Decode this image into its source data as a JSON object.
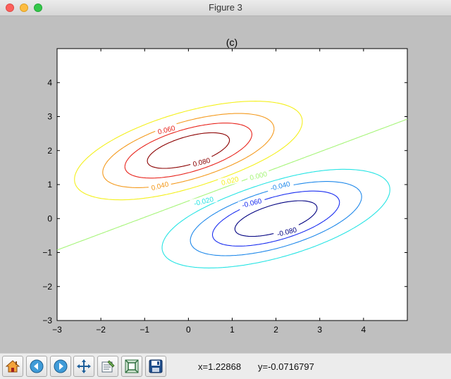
{
  "window": {
    "title": "Figure 3"
  },
  "toolbar": {
    "buttons": [
      {
        "name": "home-button",
        "icon": "home-icon"
      },
      {
        "name": "back-button",
        "icon": "back-arrow-icon"
      },
      {
        "name": "forward-button",
        "icon": "forward-arrow-icon"
      },
      {
        "name": "pan-button",
        "icon": "move-icon"
      },
      {
        "name": "configure-subplots-button",
        "icon": "subplots-icon"
      },
      {
        "name": "zoom-button",
        "icon": "zoom-rect-icon"
      },
      {
        "name": "save-button",
        "icon": "save-icon"
      }
    ],
    "x_readout": "x=1.22868",
    "y_readout": "y=-0.0716797"
  },
  "chart_data": {
    "type": "contour",
    "title": "(c)",
    "xlabel": "",
    "ylabel": "",
    "xlim": [
      -3,
      5
    ],
    "ylim": [
      -3,
      5
    ],
    "xticks": [
      "−3",
      "−2",
      "−1",
      "0",
      "1",
      "2",
      "3",
      "4"
    ],
    "yticks": [
      "−3",
      "−2",
      "−1",
      "0",
      "1",
      "2",
      "3",
      "4"
    ],
    "grid": false,
    "contours": [
      {
        "level": 0.08,
        "color": "#8b0000",
        "center": [
          0.0,
          2.0
        ]
      },
      {
        "level": 0.06,
        "color": "#e8241c",
        "center": [
          0.0,
          2.0
        ]
      },
      {
        "level": 0.04,
        "color": "#f49a1d",
        "center": [
          0.0,
          2.0
        ]
      },
      {
        "level": 0.02,
        "color": "#f4f01c",
        "center": [
          0.0,
          2.0
        ]
      },
      {
        "level": 0.0,
        "color": "#a7f57a",
        "center": null
      },
      {
        "level": -0.02,
        "color": "#26e4e4",
        "center": [
          2.0,
          0.0
        ]
      },
      {
        "level": -0.04,
        "color": "#1e88ea",
        "center": [
          2.0,
          0.0
        ]
      },
      {
        "level": -0.06,
        "color": "#1a2ef0",
        "center": [
          2.0,
          0.0
        ]
      },
      {
        "level": -0.08,
        "color": "#000080",
        "center": [
          2.0,
          0.0
        ]
      }
    ],
    "contour_labels": [
      {
        "text": "0.060",
        "x": -0.5,
        "y": 2.6,
        "color": "#e8241c"
      },
      {
        "text": "0.080",
        "x": 0.3,
        "y": 1.65,
        "color": "#8b0000"
      },
      {
        "text": "0.040",
        "x": -0.65,
        "y": 0.95,
        "color": "#f49a1d"
      },
      {
        "text": "0.020",
        "x": 0.95,
        "y": 1.1,
        "color": "#f4f01c"
      },
      {
        "text": "0.000",
        "x": 1.6,
        "y": 1.25,
        "color": "#a7f57a"
      },
      {
        "text": "-0.020",
        "x": 0.35,
        "y": 0.5,
        "color": "#26e4e4"
      },
      {
        "text": "-0.040",
        "x": 2.1,
        "y": 0.95,
        "color": "#1e88ea"
      },
      {
        "text": "-0.060",
        "x": 1.45,
        "y": 0.45,
        "color": "#1a2ef0"
      },
      {
        "text": "-0.080",
        "x": 2.25,
        "y": -0.4,
        "color": "#000080"
      }
    ]
  }
}
